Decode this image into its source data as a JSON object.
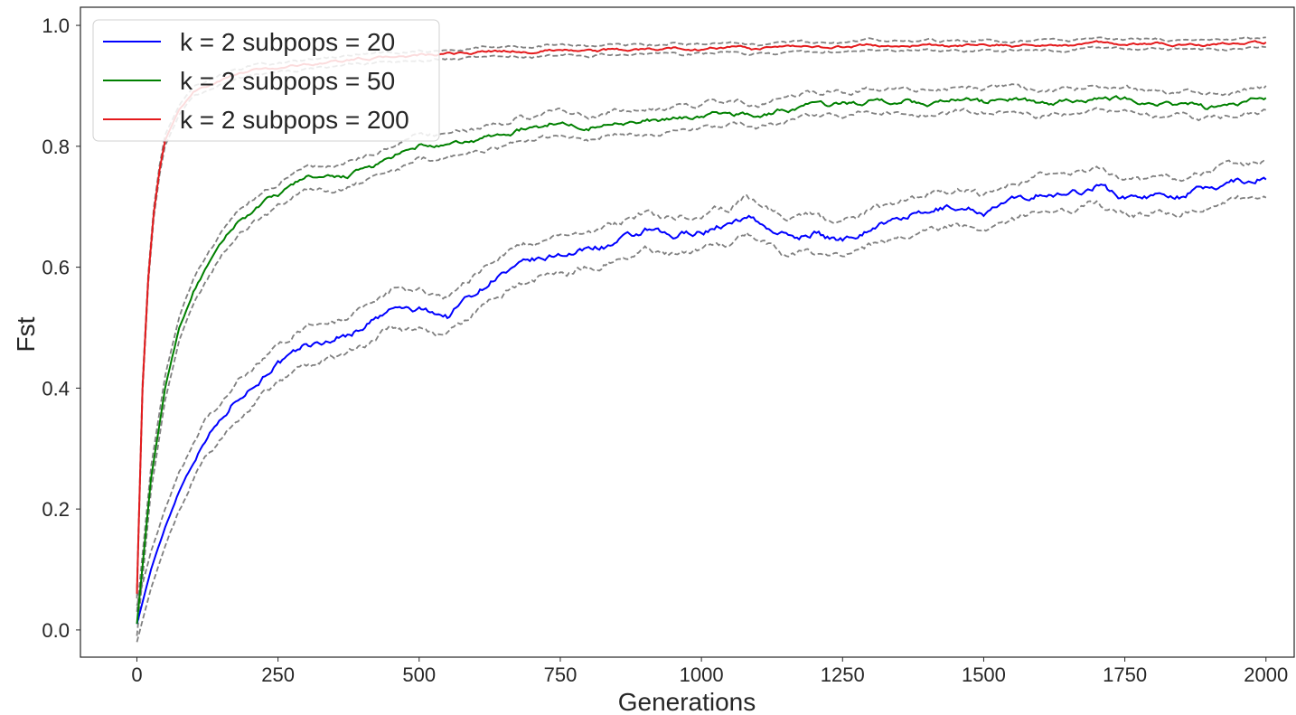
{
  "chart_data": {
    "type": "line",
    "xlabel": "Generations",
    "ylabel": "Fst",
    "xlim": [
      -100,
      2050
    ],
    "ylim": [
      -0.045,
      1.03
    ],
    "xticks": [
      0,
      250,
      500,
      750,
      1000,
      1250,
      1500,
      1750,
      2000
    ],
    "yticks": [
      0.0,
      0.2,
      0.4,
      0.6,
      0.8,
      1.0
    ],
    "xtick_labels": [
      "0",
      "250",
      "500",
      "750",
      "1000",
      "1250",
      "1500",
      "1750",
      "2000"
    ],
    "ytick_labels": [
      "0.0",
      "0.2",
      "0.4",
      "0.6",
      "0.8",
      "1.0"
    ],
    "grid": false,
    "legend_position": "top-left",
    "band_color": "#808080",
    "band_style": "dashed",
    "series": [
      {
        "name": "k = 2 subpops = 20",
        "color": "#0000ff",
        "band_width": 0.03,
        "x": [
          0,
          25,
          50,
          75,
          100,
          125,
          150,
          175,
          200,
          250,
          300,
          350,
          400,
          450,
          500,
          550,
          600,
          650,
          700,
          750,
          800,
          850,
          900,
          950,
          1000,
          1050,
          1080,
          1100,
          1150,
          1200,
          1250,
          1300,
          1350,
          1400,
          1450,
          1500,
          1550,
          1600,
          1650,
          1700,
          1750,
          1800,
          1850,
          1900,
          1950,
          2000
        ],
        "values": [
          0.01,
          0.1,
          0.17,
          0.23,
          0.28,
          0.32,
          0.35,
          0.38,
          0.4,
          0.44,
          0.47,
          0.48,
          0.5,
          0.53,
          0.53,
          0.52,
          0.56,
          0.59,
          0.61,
          0.62,
          0.63,
          0.64,
          0.66,
          0.65,
          0.66,
          0.67,
          0.685,
          0.675,
          0.65,
          0.655,
          0.645,
          0.665,
          0.68,
          0.69,
          0.7,
          0.69,
          0.71,
          0.72,
          0.72,
          0.735,
          0.715,
          0.72,
          0.72,
          0.73,
          0.745,
          0.745
        ]
      },
      {
        "name": "k = 2 subpops = 50",
        "color": "#008000",
        "band_width": 0.02,
        "x": [
          0,
          25,
          50,
          75,
          100,
          125,
          150,
          175,
          200,
          250,
          300,
          350,
          400,
          450,
          500,
          550,
          600,
          650,
          700,
          750,
          800,
          850,
          900,
          950,
          1000,
          1050,
          1100,
          1150,
          1200,
          1250,
          1300,
          1350,
          1400,
          1450,
          1500,
          1550,
          1600,
          1650,
          1700,
          1750,
          1800,
          1850,
          1900,
          1950,
          2000
        ],
        "values": [
          0.01,
          0.25,
          0.4,
          0.5,
          0.56,
          0.6,
          0.64,
          0.67,
          0.69,
          0.72,
          0.75,
          0.745,
          0.76,
          0.78,
          0.8,
          0.8,
          0.81,
          0.82,
          0.83,
          0.84,
          0.83,
          0.84,
          0.84,
          0.845,
          0.85,
          0.855,
          0.85,
          0.86,
          0.87,
          0.87,
          0.875,
          0.875,
          0.87,
          0.88,
          0.875,
          0.88,
          0.87,
          0.875,
          0.88,
          0.88,
          0.87,
          0.87,
          0.865,
          0.87,
          0.88
        ]
      },
      {
        "name": "k = 2 subpops = 200",
        "color": "#e41a1c",
        "band_width": 0.008,
        "x": [
          0,
          10,
          20,
          30,
          40,
          50,
          75,
          100,
          150,
          200,
          300,
          400,
          500,
          550,
          600,
          650,
          700,
          750,
          800,
          850,
          900,
          950,
          1000,
          1050,
          1100,
          1150,
          1200,
          1250,
          1300,
          1350,
          1400,
          1450,
          1500,
          1550,
          1600,
          1650,
          1700,
          1750,
          1800,
          1850,
          1900,
          1950,
          2000
        ],
        "values": [
          0.06,
          0.4,
          0.58,
          0.69,
          0.76,
          0.81,
          0.86,
          0.89,
          0.91,
          0.925,
          0.935,
          0.945,
          0.95,
          0.952,
          0.955,
          0.958,
          0.955,
          0.96,
          0.958,
          0.96,
          0.96,
          0.962,
          0.96,
          0.965,
          0.96,
          0.965,
          0.965,
          0.963,
          0.968,
          0.965,
          0.968,
          0.965,
          0.968,
          0.966,
          0.968,
          0.966,
          0.972,
          0.968,
          0.97,
          0.968,
          0.968,
          0.97,
          0.972
        ]
      }
    ]
  }
}
